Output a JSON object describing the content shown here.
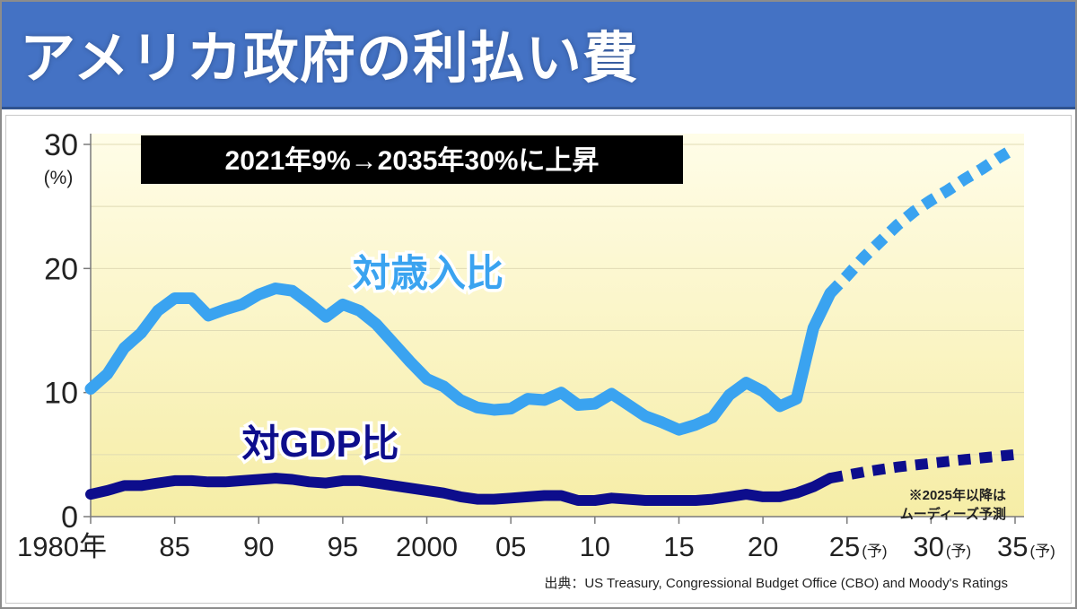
{
  "header": {
    "title": "アメリカ政府の利払い費"
  },
  "chart_data": {
    "type": "line",
    "headline": "2021年9%→2035年30%に上昇",
    "y_unit": "(%)",
    "ylim": [
      0,
      30
    ],
    "y_ticks": [
      0,
      10,
      20,
      30
    ],
    "xlim": [
      1980,
      2035
    ],
    "x_ticks": [
      {
        "x": 1980,
        "label": "1980年",
        "suffix": ""
      },
      {
        "x": 1985,
        "label": "85",
        "suffix": ""
      },
      {
        "x": 1990,
        "label": "90",
        "suffix": ""
      },
      {
        "x": 1995,
        "label": "95",
        "suffix": ""
      },
      {
        "x": 2000,
        "label": "2000",
        "suffix": ""
      },
      {
        "x": 2005,
        "label": "05",
        "suffix": ""
      },
      {
        "x": 2010,
        "label": "10",
        "suffix": ""
      },
      {
        "x": 2015,
        "label": "15",
        "suffix": ""
      },
      {
        "x": 2020,
        "label": "20",
        "suffix": ""
      },
      {
        "x": 2025,
        "label": "25",
        "suffix": "(予)"
      },
      {
        "x": 2030,
        "label": "30",
        "suffix": "(予)"
      },
      {
        "x": 2035,
        "label": "35",
        "suffix": "(予)"
      }
    ],
    "series": [
      {
        "name": "対歳入比",
        "color": "#3aa3f0",
        "actual": [
          [
            1980,
            10.3
          ],
          [
            1981,
            11.5
          ],
          [
            1982,
            13.6
          ],
          [
            1983,
            14.8
          ],
          [
            1984,
            16.6
          ],
          [
            1985,
            17.6
          ],
          [
            1986,
            17.6
          ],
          [
            1987,
            16.2
          ],
          [
            1988,
            16.7
          ],
          [
            1989,
            17.1
          ],
          [
            1990,
            17.9
          ],
          [
            1991,
            18.4
          ],
          [
            1992,
            18.2
          ],
          [
            1993,
            17.2
          ],
          [
            1994,
            16.1
          ],
          [
            1995,
            17.1
          ],
          [
            1996,
            16.6
          ],
          [
            1997,
            15.5
          ],
          [
            1998,
            14.0
          ],
          [
            1999,
            12.5
          ],
          [
            2000,
            11.1
          ],
          [
            2001,
            10.5
          ],
          [
            2002,
            9.4
          ],
          [
            2003,
            8.8
          ],
          [
            2004,
            8.6
          ],
          [
            2005,
            8.7
          ],
          [
            2006,
            9.5
          ],
          [
            2007,
            9.4
          ],
          [
            2008,
            10.0
          ],
          [
            2009,
            9.0
          ],
          [
            2010,
            9.1
          ],
          [
            2011,
            9.9
          ],
          [
            2012,
            9.0
          ],
          [
            2013,
            8.1
          ],
          [
            2014,
            7.6
          ],
          [
            2015,
            7.0
          ],
          [
            2016,
            7.4
          ],
          [
            2017,
            8.0
          ],
          [
            2018,
            9.8
          ],
          [
            2019,
            10.8
          ],
          [
            2020,
            10.1
          ],
          [
            2021,
            8.9
          ],
          [
            2022,
            9.5
          ],
          [
            2023,
            15.2
          ],
          [
            2024,
            18.0
          ]
        ],
        "projected": [
          [
            2024,
            18.0
          ],
          [
            2025,
            19.4
          ],
          [
            2026,
            20.9
          ],
          [
            2027,
            22.2
          ],
          [
            2028,
            23.5
          ],
          [
            2029,
            24.6
          ],
          [
            2030,
            25.5
          ],
          [
            2031,
            26.3
          ],
          [
            2032,
            27.2
          ],
          [
            2033,
            28.0
          ],
          [
            2034,
            28.9
          ],
          [
            2035,
            29.7
          ]
        ]
      },
      {
        "name": "対GDP比",
        "color": "#0d0d8c",
        "actual": [
          [
            1980,
            1.8
          ],
          [
            1981,
            2.1
          ],
          [
            1982,
            2.5
          ],
          [
            1983,
            2.5
          ],
          [
            1984,
            2.7
          ],
          [
            1985,
            2.9
          ],
          [
            1986,
            2.9
          ],
          [
            1987,
            2.8
          ],
          [
            1988,
            2.8
          ],
          [
            1989,
            2.9
          ],
          [
            1990,
            3.0
          ],
          [
            1991,
            3.1
          ],
          [
            1992,
            3.0
          ],
          [
            1993,
            2.8
          ],
          [
            1994,
            2.7
          ],
          [
            1995,
            2.9
          ],
          [
            1996,
            2.9
          ],
          [
            1997,
            2.7
          ],
          [
            1998,
            2.5
          ],
          [
            1999,
            2.3
          ],
          [
            2000,
            2.1
          ],
          [
            2001,
            1.9
          ],
          [
            2002,
            1.6
          ],
          [
            2003,
            1.4
          ],
          [
            2004,
            1.4
          ],
          [
            2005,
            1.5
          ],
          [
            2006,
            1.6
          ],
          [
            2007,
            1.7
          ],
          [
            2008,
            1.7
          ],
          [
            2009,
            1.3
          ],
          [
            2010,
            1.3
          ],
          [
            2011,
            1.5
          ],
          [
            2012,
            1.4
          ],
          [
            2013,
            1.3
          ],
          [
            2014,
            1.3
          ],
          [
            2015,
            1.3
          ],
          [
            2016,
            1.3
          ],
          [
            2017,
            1.4
          ],
          [
            2018,
            1.6
          ],
          [
            2019,
            1.8
          ],
          [
            2020,
            1.6
          ],
          [
            2021,
            1.6
          ],
          [
            2022,
            1.9
          ],
          [
            2023,
            2.4
          ],
          [
            2024,
            3.1
          ]
        ],
        "projected": [
          [
            2024,
            3.1
          ],
          [
            2026,
            3.6
          ],
          [
            2028,
            4.0
          ],
          [
            2030,
            4.3
          ],
          [
            2032,
            4.6
          ],
          [
            2035,
            5.0
          ]
        ]
      }
    ],
    "annotations": {
      "revenue_label": "対歳入比",
      "gdp_label": "対GDP比",
      "projection_note_line1": "※2025年以降は",
      "projection_note_line2": "ムーディーズ予測"
    },
    "source": "出典：US Treasury, Congressional Budget Office (CBO) and Moody's Ratings",
    "colors": {
      "plot_bg_top": "#fffde8",
      "plot_bg_bottom": "#f6eda6",
      "gridline": "#e0dbb4",
      "axis": "#7a7a7a",
      "headline_bg": "#000000",
      "headline_text": "#ffffff"
    }
  }
}
